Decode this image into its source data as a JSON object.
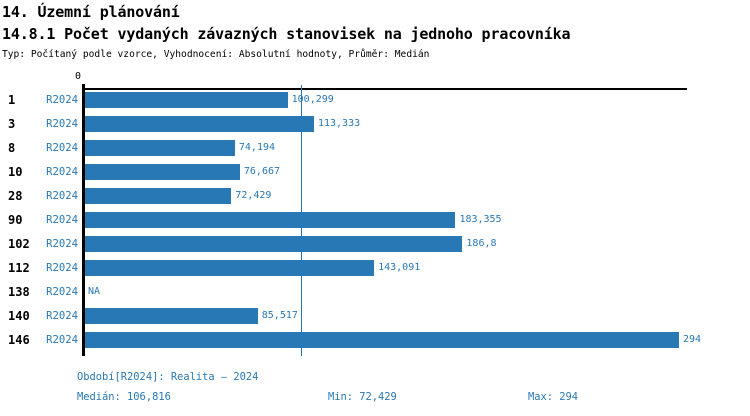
{
  "title": "14. Územní plánování",
  "subtitle": "14.8.1 Počet vydaných závazných stanovisek na jednoho pracovníka",
  "meta": "Typ: Počítaný podle vzorce, Vyhodnocení: Absolutní hodnoty, Průměr: Medián",
  "chart_data": {
    "type": "bar",
    "orientation": "horizontal",
    "title": "14.8.1 Počet vydaných závazných stanovisek na jednoho pracovníka",
    "series_label": "R2024",
    "categories": [
      "1",
      "3",
      "8",
      "10",
      "28",
      "90",
      "102",
      "112",
      "138",
      "140",
      "146"
    ],
    "values": [
      100.299,
      113.333,
      74.194,
      76.667,
      72.429,
      183.355,
      186.8,
      143.091,
      null,
      85.517,
      294
    ],
    "value_labels": [
      "100,299",
      "113,333",
      "74,194",
      "76,667",
      "72,429",
      "183,355",
      "186,8",
      "143,091",
      "NA",
      "85,517",
      "294"
    ],
    "na_label": "NA",
    "xlim": [
      0,
      294
    ],
    "axis_zero_label": "0",
    "median_value": 106.816,
    "grid": false,
    "legend": false,
    "bar_color": "#2878b5",
    "text_accent_color": "#2878b5",
    "axis_color": "#000000"
  },
  "footer": {
    "period": "Období[R2024]: Realita – 2024",
    "median": "Medián: 106,816",
    "min": "Min: 72,429",
    "max": "Max: 294"
  }
}
